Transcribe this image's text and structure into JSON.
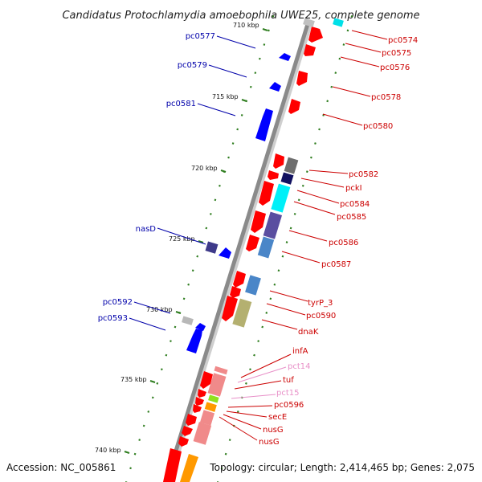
{
  "title": "Candidatus Protochlamydia amoebophila UWE25, complete genome",
  "accession": "Accession: NC_005861",
  "topology": "Topology: circular; Length: 2,414,465 bp; Genes: 2,075",
  "colors": {
    "plus": "#ff0000",
    "plus_light": "#f08a8a",
    "minus": "#0000ff",
    "backbone": "#8a8a8a",
    "tick": "#2e7d1e",
    "label_plus": "#cc0000",
    "label_minus": "#0000aa",
    "label_rrna": "#e890c8"
  },
  "ruler": [
    {
      "text": "710 kbp"
    },
    {
      "text": "715 kbp"
    },
    {
      "text": "720 kbp"
    },
    {
      "text": "725 kbp"
    },
    {
      "text": "730 kbp"
    },
    {
      "text": "735 kbp"
    },
    {
      "text": "740 kbp"
    }
  ],
  "minus_labels": [
    {
      "text": "pc0577"
    },
    {
      "text": "pc0579"
    },
    {
      "text": "pc0581"
    },
    {
      "text": "nasD"
    },
    {
      "text": "pc0592"
    },
    {
      "text": "pc0593"
    }
  ],
  "plus_labels": [
    {
      "text": "pc0574"
    },
    {
      "text": "pc0575"
    },
    {
      "text": "pc0576"
    },
    {
      "text": "pc0578"
    },
    {
      "text": "pc0580"
    },
    {
      "text": "pc0582"
    },
    {
      "text": "pckI"
    },
    {
      "text": "pc0584"
    },
    {
      "text": "pc0585"
    },
    {
      "text": "pc0586"
    },
    {
      "text": "pc0587"
    },
    {
      "text": "tyrP_3"
    },
    {
      "text": "pc0590"
    },
    {
      "text": "dnaK"
    },
    {
      "text": "infA"
    },
    {
      "text": "pct14"
    },
    {
      "text": "tuf"
    },
    {
      "text": "pct15"
    },
    {
      "text": "pc0596"
    },
    {
      "text": "secE"
    },
    {
      "text": "nusG"
    },
    {
      "text": "nusG"
    }
  ]
}
